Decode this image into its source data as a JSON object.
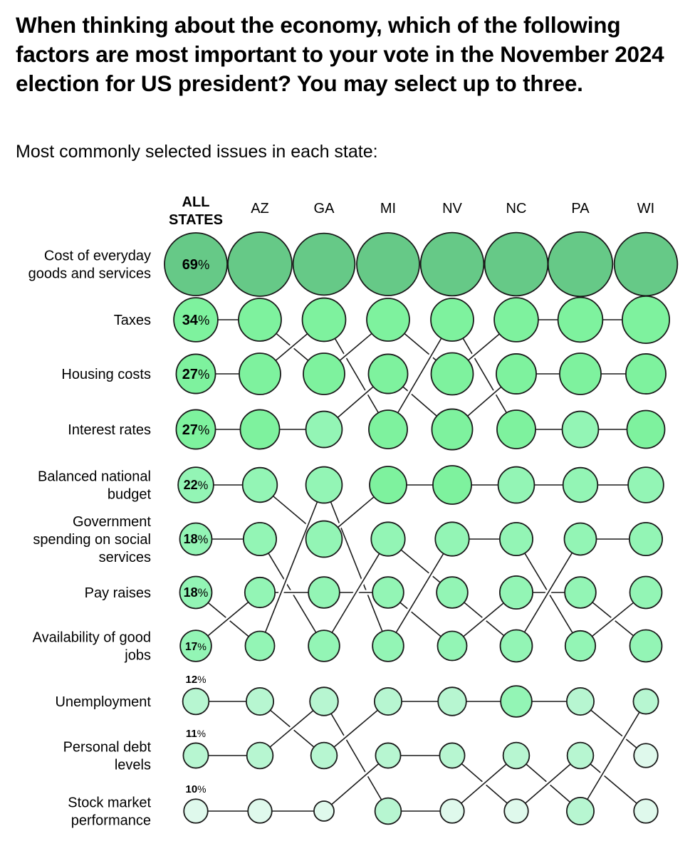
{
  "title": "When thinking about the economy, which of the following factors are most important to your vote in the November 2024 election for US president? You may select up to three.",
  "subtitle": "Most commonly selected issues in each state:",
  "chart_data": {
    "type": "bump-bubble",
    "title": "When thinking about the economy, which of the following factors are most important to your vote in the November 2024 election for US president? You may select up to three.",
    "subtitle": "Most commonly selected issues in each state:",
    "columns": [
      "ALL STATES",
      "AZ",
      "GA",
      "MI",
      "NV",
      "NC",
      "PA",
      "WI"
    ],
    "row_labels": [
      "Cost of everyday goods and services",
      "Taxes",
      "Housing costs",
      "Interest rates",
      "Balanced national budget",
      "Government spending on social services",
      "Pay raises",
      "Availability of good jobs",
      "Unemployment",
      "Personal debt levels",
      "Stock market performance"
    ],
    "all_states_labels": [
      "69%",
      "34%",
      "27%",
      "27%",
      "22%",
      "18%",
      "18%",
      "17%",
      "12%",
      "11%",
      "10%"
    ],
    "note": "Rows are ranks; lines connect the same issue across states; circle area encodes share of respondents (state values estimated from circle size, not printed).",
    "rankings": {
      "ALL STATES": [
        "Cost of everyday goods and services",
        "Taxes",
        "Housing costs",
        "Interest rates",
        "Balanced national budget",
        "Government spending on social services",
        "Pay raises",
        "Availability of good jobs",
        "Unemployment",
        "Personal debt levels",
        "Stock market performance"
      ],
      "AZ": [
        "Cost of everyday goods and services",
        "Taxes",
        "Housing costs",
        "Interest rates",
        "Balanced national budget",
        "Government spending on social services",
        "Availability of good jobs",
        "Pay raises",
        "Unemployment",
        "Personal debt levels",
        "Stock market performance"
      ],
      "GA": [
        "Cost of everyday goods and services",
        "Housing costs",
        "Taxes",
        "Interest rates",
        "Pay raises",
        "Balanced national budget",
        "Availability of good jobs",
        "Government spending on social services",
        "Personal debt levels",
        "Unemployment",
        "Stock market performance"
      ],
      "MI": [
        "Cost of everyday goods and services",
        "Taxes",
        "Interest rates",
        "Housing costs",
        "Balanced national budget",
        "Government spending on social services",
        "Availability of good jobs",
        "Pay raises",
        "Unemployment",
        "Stock market performance",
        "Personal debt levels"
      ],
      "NV": [
        "Cost of everyday goods and services",
        "Housing costs",
        "Taxes",
        "Interest rates",
        "Balanced national budget",
        "Pay raises",
        "Government spending on social services",
        "Availability of good jobs",
        "Unemployment",
        "Stock market performance",
        "Personal debt levels"
      ],
      "NC": [
        "Cost of everyday goods and services",
        "Taxes",
        "Interest rates",
        "Housing costs",
        "Balanced national budget",
        "Pay raises",
        "Availability of good jobs",
        "Government spending on social services",
        "Unemployment",
        "Personal debt levels",
        "Stock market performance"
      ],
      "PA": [
        "Cost of everyday goods and services",
        "Taxes",
        "Interest rates",
        "Housing costs",
        "Balanced national budget",
        "Government spending on social services",
        "Availability of good jobs",
        "Pay raises",
        "Unemployment",
        "Stock market performance",
        "Personal debt levels"
      ],
      "WI": [
        "Cost of everyday goods and services",
        "Taxes",
        "Interest rates",
        "Housing costs",
        "Balanced national budget",
        "Government spending on social services",
        "Pay raises",
        "Availability of good jobs",
        "Personal debt levels",
        "Unemployment",
        "Stock market performance"
      ]
    },
    "values_by_rank": {
      "ALL STATES": [
        69,
        34,
        27,
        27,
        22,
        18,
        18,
        17,
        12,
        11,
        10
      ],
      "AZ": [
        72,
        32,
        30,
        27,
        21,
        19,
        16,
        15,
        13,
        12,
        10
      ],
      "GA": [
        67,
        33,
        30,
        23,
        23,
        23,
        17,
        17,
        14,
        12,
        7
      ],
      "MI": [
        69,
        32,
        27,
        26,
        24,
        20,
        17,
        17,
        13,
        11,
        12
      ],
      "NV": [
        70,
        32,
        31,
        29,
        26,
        20,
        17,
        15,
        14,
        11,
        10
      ],
      "NC": [
        70,
        34,
        28,
        26,
        23,
        19,
        19,
        18,
        17,
        12,
        10
      ],
      "PA": [
        73,
        35,
        30,
        23,
        21,
        18,
        17,
        16,
        13,
        12,
        13
      ],
      "WI": [
        70,
        39,
        28,
        25,
        22,
        19,
        18,
        18,
        11,
        10,
        10
      ]
    },
    "color_scale": [
      {
        "min": 50,
        "color": "#66c987"
      },
      {
        "min": 24,
        "color": "#7ef29e"
      },
      {
        "min": 15,
        "color": "#93f5b5"
      },
      {
        "min": 11,
        "color": "#b7f6d1"
      },
      {
        "min": 0,
        "color": "#dff9ec"
      }
    ],
    "line_color": "#1a1a1a"
  }
}
